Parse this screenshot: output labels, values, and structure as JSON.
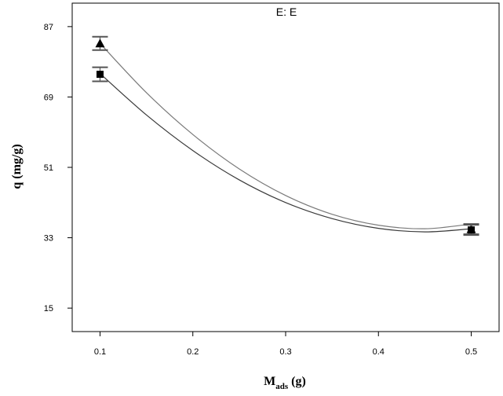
{
  "chart_data": {
    "type": "line",
    "title": "E: E",
    "xlabel_main": "M",
    "xlabel_sub": "ads",
    "xlabel_unit": "(g)",
    "ylabel": "q (mg/g)",
    "xlim": [
      0.07,
      0.53
    ],
    "ylim": [
      9,
      93
    ],
    "x_ticks": [
      "0.1",
      "0.2",
      "0.3",
      "0.4",
      "0.5"
    ],
    "y_ticks": [
      "15",
      "33",
      "51",
      "69",
      "87"
    ],
    "grid": false,
    "series": [
      {
        "marker": "triangle",
        "color": "#7a7a7a",
        "curve_x": [
          0.1,
          0.15,
          0.2,
          0.25,
          0.3,
          0.35,
          0.4,
          0.45,
          0.5
        ],
        "curve_y": [
          82.7,
          70.1,
          59.4,
          50.6,
          43.8,
          39.0,
          36.2,
          35.3,
          36.5
        ],
        "points": [
          {
            "x": 0.1,
            "y": 82.7,
            "err": 1.7
          },
          {
            "x": 0.5,
            "y": 35.2,
            "err": 1.3
          }
        ]
      },
      {
        "marker": "square",
        "color": "#3a3a3a",
        "curve_x": [
          0.1,
          0.15,
          0.2,
          0.25,
          0.3,
          0.35,
          0.4,
          0.45,
          0.5
        ],
        "curve_y": [
          75.0,
          64.4,
          55.3,
          47.8,
          42.0,
          37.9,
          35.4,
          34.5,
          35.3
        ],
        "points": [
          {
            "x": 0.1,
            "y": 74.8,
            "err": 1.8
          },
          {
            "x": 0.5,
            "y": 35.0,
            "err": 1.3
          }
        ]
      }
    ]
  }
}
